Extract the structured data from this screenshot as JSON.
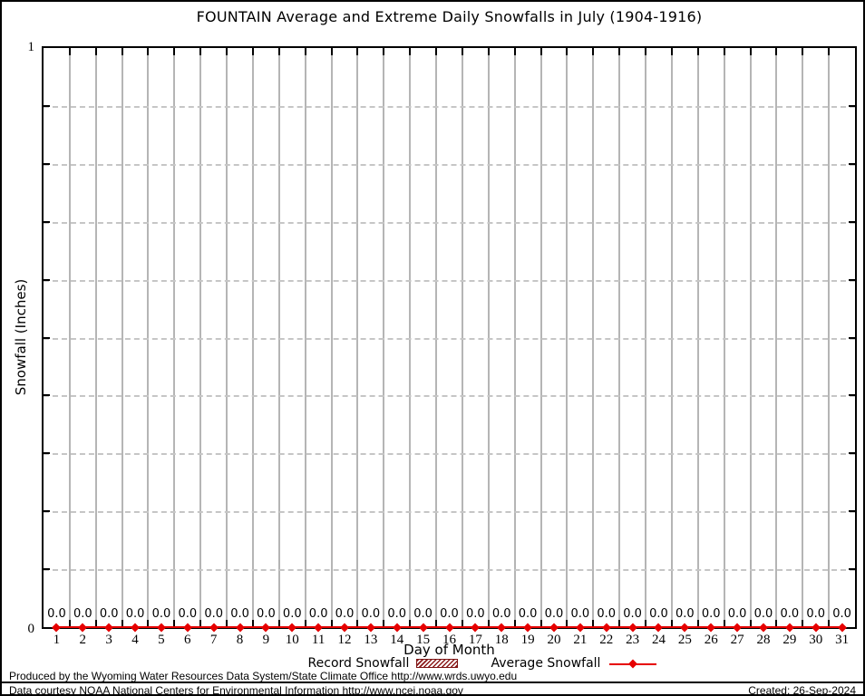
{
  "title": "FOUNTAIN Average and Extreme Daily Snowfalls in July (1904-1916)",
  "y_axis": {
    "label": "Snowfall (Inches)",
    "max_label": "1",
    "min_label": "0"
  },
  "x_axis": {
    "label": "Day of Month"
  },
  "legend": {
    "record_label": "Record Snowfall",
    "average_label": "Average Snowfall"
  },
  "footer": {
    "line1": "Produced by the Wyoming Water Resources Data System/State Climate Office http://www.wrds.uwyo.edu",
    "line2": "Data courtesy NOAA National Centers for Environmental Information http://www.ncei.noaa.gov",
    "created": "Created: 26-Sep-2024"
  },
  "colors": {
    "average_line": "#e60000",
    "record_hatch": "#8b1a1a",
    "vertical_grid": "#b5b5b5",
    "horizontal_grid_dashed": "#c6c6c6",
    "axis": "#000000"
  },
  "chart_data": {
    "type": "line",
    "title": "FOUNTAIN Average and Extreme Daily Snowfalls in July (1904-1916)",
    "xlabel": "Day of Month",
    "ylabel": "Snowfall (Inches)",
    "ylim": [
      0,
      1
    ],
    "y_tick_labels_shown": [
      "0",
      "1"
    ],
    "y_minor_tick_step": 0.1,
    "grid": {
      "vertical": "solid",
      "horizontal": "dashed"
    },
    "legend_position": "bottom",
    "categories": [
      1,
      2,
      3,
      4,
      5,
      6,
      7,
      8,
      9,
      10,
      11,
      12,
      13,
      14,
      15,
      16,
      17,
      18,
      19,
      20,
      21,
      22,
      23,
      24,
      25,
      26,
      27,
      28,
      29,
      30,
      31
    ],
    "series": [
      {
        "name": "Record Snowfall",
        "style": "hatched-box",
        "values": [
          0,
          0,
          0,
          0,
          0,
          0,
          0,
          0,
          0,
          0,
          0,
          0,
          0,
          0,
          0,
          0,
          0,
          0,
          0,
          0,
          0,
          0,
          0,
          0,
          0,
          0,
          0,
          0,
          0,
          0,
          0
        ]
      },
      {
        "name": "Average Snowfall",
        "style": "line-with-markers",
        "values": [
          0,
          0,
          0,
          0,
          0,
          0,
          0,
          0,
          0,
          0,
          0,
          0,
          0,
          0,
          0,
          0,
          0,
          0,
          0,
          0,
          0,
          0,
          0,
          0,
          0,
          0,
          0,
          0,
          0,
          0,
          0
        ]
      }
    ],
    "point_label_format": "0.0"
  }
}
